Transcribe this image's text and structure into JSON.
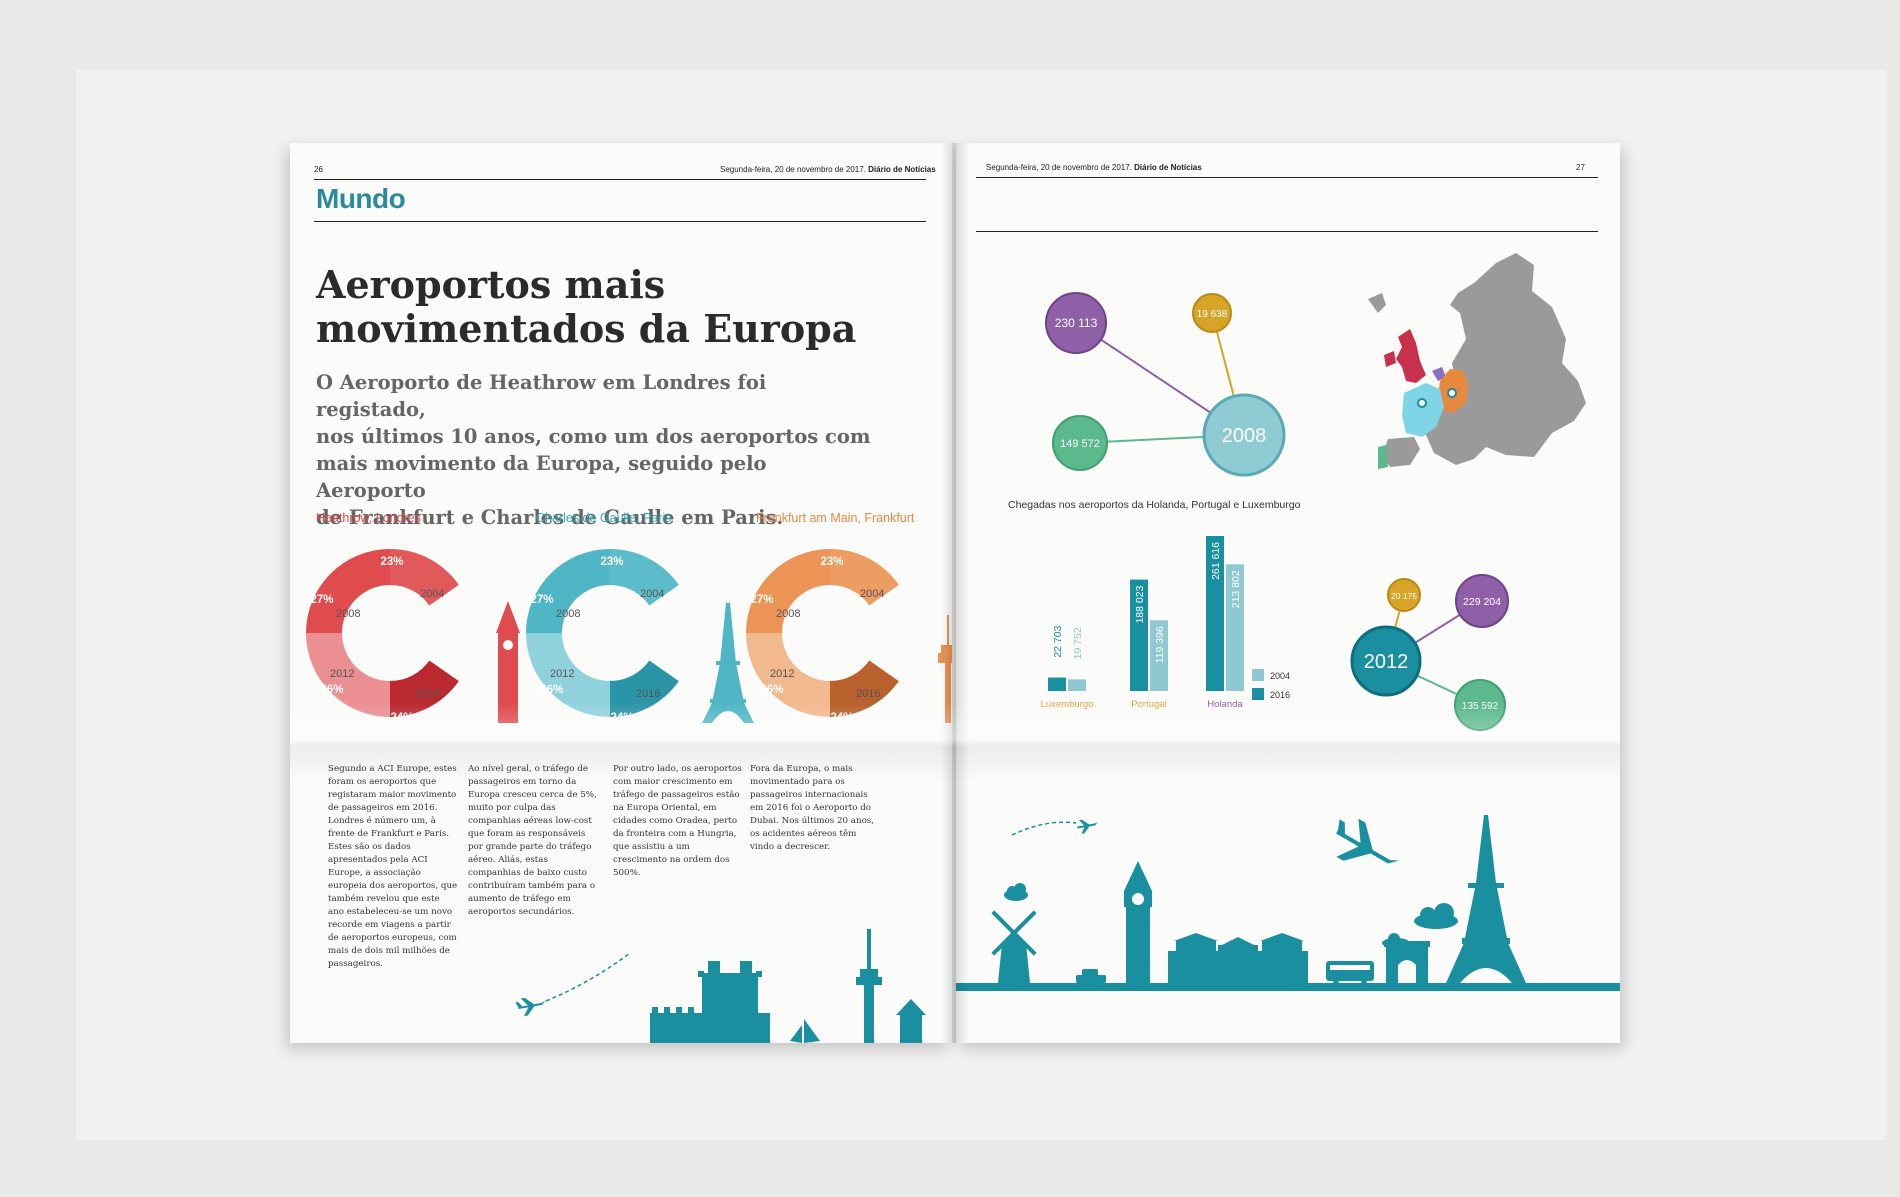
{
  "left_page": {
    "page_number": "26",
    "header_date": "Segunda-feira, 20 de novembro de 2017.",
    "header_paper": "Diário de Notícias",
    "section": "Mundo",
    "headline_line1": "Aeroportos mais",
    "headline_line2": "movimentados da Europa",
    "deck_lines": [
      "O Aeroporto de Heathrow em Londres foi registado,",
      "nos últimos 10 anos, como um dos aeroportos com",
      "mais movimento da Europa, seguido pelo Aeroporto",
      "de Frankfurt e Charles de Gaulle em Paris."
    ],
    "rings": [
      {
        "airport": "Heathrow,",
        "city": "Londres",
        "color": "#e04b4e",
        "dark": "#b9292f",
        "light": "#eb8f92",
        "landmark": "big-ben",
        "values": {
          "2004": "23%",
          "2008": "27%",
          "2012": "26%",
          "2016": "24%"
        }
      },
      {
        "airport": "Charles de Gaulle,",
        "city": "Paris",
        "color": "#4fb6c6",
        "dark": "#2a95a6",
        "light": "#8fd2dc",
        "landmark": "eiffel-tower",
        "values": {
          "2004": "23%",
          "2008": "27%",
          "2012": "26%",
          "2016": "24%"
        }
      },
      {
        "airport": "Frankfurt am Main,",
        "city": "Frankfurt",
        "color": "#ec9455",
        "dark": "#b9612d",
        "light": "#f2b98f",
        "landmark": "tv-tower",
        "values": {
          "2004": "23%",
          "2008": "27%",
          "2012": "26%",
          "2016": "24%"
        }
      }
    ],
    "year_labels": [
      "2004",
      "2008",
      "2012",
      "2016"
    ],
    "columns": [
      "Segundo a ACI Europe, estes foram os aeroportos que registaram maior movimento de passageiros em 2016. Londres é número um, à frente de Frankfurt e Paris. Estes são os dados apresentados pela ACI Europe, a associação europeia dos aeroportos, que também revelou que este ano estabeleceu-se um novo recorde em viagens a partir de aeroportos europeus, com mais de dois mil milhões de passageiros.",
      "Ao nível geral, o tráfego de passageiros em torno da Europa cresceu cerca de 5%, muito por culpa das companhias aéreas low-cost que foram as responsáveis por grande parte do tráfego aéreo. Aliás, estas companhias de baixo custo contribuíram também para o aumento de tráfego em aeroportos secundários.",
      "Por outro lado, os aeroportos com maior crescimento em tráfego de passageiros estão na Europa Oriental, em cidades como Oradea, perto da fronteira com a Hungria, que assistiu a um crescimento na ordem dos 500%.",
      "Fora da Europa, o mais movimentado para os passageiros internacionais em 2016 foi o Aeroporto do Dubai. Nos últimos 20 anos, os acidentes aéreos têm vindo a decrescer."
    ]
  },
  "right_page": {
    "page_number": "27",
    "header_date": "Segunda-feira, 20 de novembro de 2017.",
    "header_paper": "Diário de Notícias",
    "bubbles_2008": {
      "center": "2008",
      "purple": "230 113",
      "yellow": "19 638",
      "green": "149 572"
    },
    "bubbles_2012": {
      "center": "2012",
      "purple": "229 204",
      "yellow": "20 175",
      "green": "135 592"
    },
    "colors": {
      "purple": "#8f5fa8",
      "yellow": "#d8a428",
      "green": "#5bb98d",
      "teal": "#1a8fa0",
      "lightteal": "#8fc8d0"
    },
    "chart_caption": "Chegadas nos aeroportos da Holanda, Portugal e Luxemburgo"
  },
  "chart_data": {
    "type": "bar",
    "title": "Chegadas nos aeroportos da Holanda, Portugal e Luxemburgo",
    "categories": [
      "Luxemburgo",
      "Portugal",
      "Holanda"
    ],
    "category_colors": [
      "#e8a33c",
      "#e8a33c",
      "#8f5fa8"
    ],
    "series": [
      {
        "name": "2004",
        "color": "#8fc8d0",
        "values": [
          19752,
          119396,
          213802
        ],
        "labels": [
          "19 752",
          "119 396",
          "213 802"
        ]
      },
      {
        "name": "2016",
        "color": "#1a8fa0",
        "values": [
          22703,
          188023,
          261616
        ],
        "labels": [
          "22 703",
          "188 023",
          "261 616"
        ]
      }
    ],
    "legend": [
      "2004",
      "2016"
    ],
    "ylim": [
      0,
      270000
    ]
  }
}
